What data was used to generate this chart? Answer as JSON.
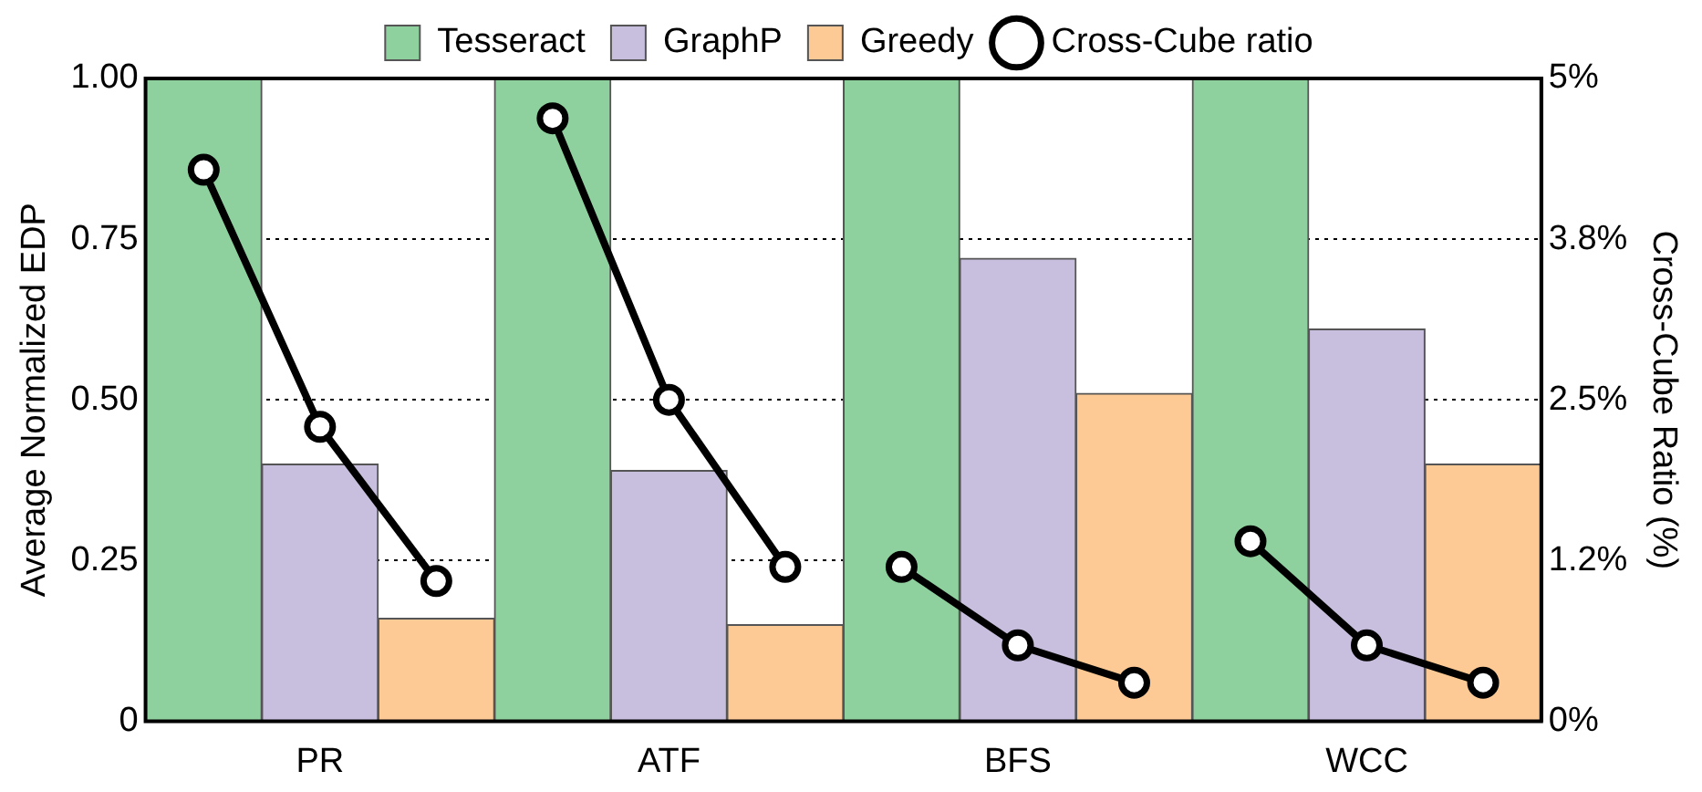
{
  "chart_data": {
    "type": "bar",
    "categories": [
      null,
      "PR",
      null,
      null,
      "ATF",
      null,
      null,
      "BFS",
      null,
      null,
      "WCC",
      null
    ],
    "ylabel": "Average Normalized EDP",
    "y2label": "Cross-Cube Ratio (%)",
    "ylim": [
      0,
      1
    ],
    "yticks": [
      0,
      0.25,
      {
        "value": 0.5,
        "label": "0.50"
      },
      0.75,
      {
        "value": 1,
        "label": "1.00"
      }
    ],
    "y2lim": [
      0,
      5
    ],
    "y2ticks": [
      {
        "value": 0,
        "label": "0%"
      },
      {
        "value": 1.25,
        "label": "1.2%"
      },
      {
        "value": 2.5,
        "label": "2.5%"
      },
      {
        "value": 3.75,
        "label": "3.8%"
      },
      {
        "value": 5,
        "label": "5%"
      }
    ],
    "grid": "y",
    "legend": "top",
    "marker": "circle",
    "line_style": "solid",
    "series": [
      {
        "name": "Tesseract",
        "color": "#8fd19e",
        "values": [
          1,
          null,
          null,
          1,
          null,
          null,
          1,
          null,
          null,
          1,
          null,
          null
        ]
      },
      {
        "name": "GraphP",
        "color": "#c8bedd",
        "values": [
          null,
          0.4,
          null,
          null,
          0.39,
          null,
          null,
          0.72,
          null,
          null,
          0.61,
          null
        ]
      },
      {
        "name": "Greedy",
        "color": "#fdc994",
        "values": [
          null,
          null,
          0.16,
          null,
          null,
          0.15,
          null,
          null,
          0.51,
          null,
          null,
          0.4
        ]
      },
      {
        "name": "Cross-Cube ratio",
        "type": "line",
        "axis": "y2",
        "color": "#000000",
        "values": [
          4.29,
          2.29,
          1.09,
          null,
          null,
          null,
          null,
          null,
          null,
          null,
          null,
          null
        ]
      },
      {
        "type": "line",
        "axis": "y2",
        "color": "#000000",
        "values": [
          null,
          null,
          null,
          4.69,
          2.5,
          1.2,
          null,
          null,
          null,
          null,
          null,
          null
        ]
      },
      {
        "type": "line",
        "axis": "y2",
        "color": "#000000",
        "values": [
          null,
          null,
          null,
          null,
          null,
          null,
          1.2,
          0.59,
          0.3,
          null,
          null,
          null
        ]
      },
      {
        "type": "line",
        "axis": "y2",
        "color": "#000000",
        "values": [
          null,
          null,
          null,
          null,
          null,
          null,
          null,
          null,
          null,
          1.4,
          0.59,
          0.3
        ]
      }
    ]
  }
}
